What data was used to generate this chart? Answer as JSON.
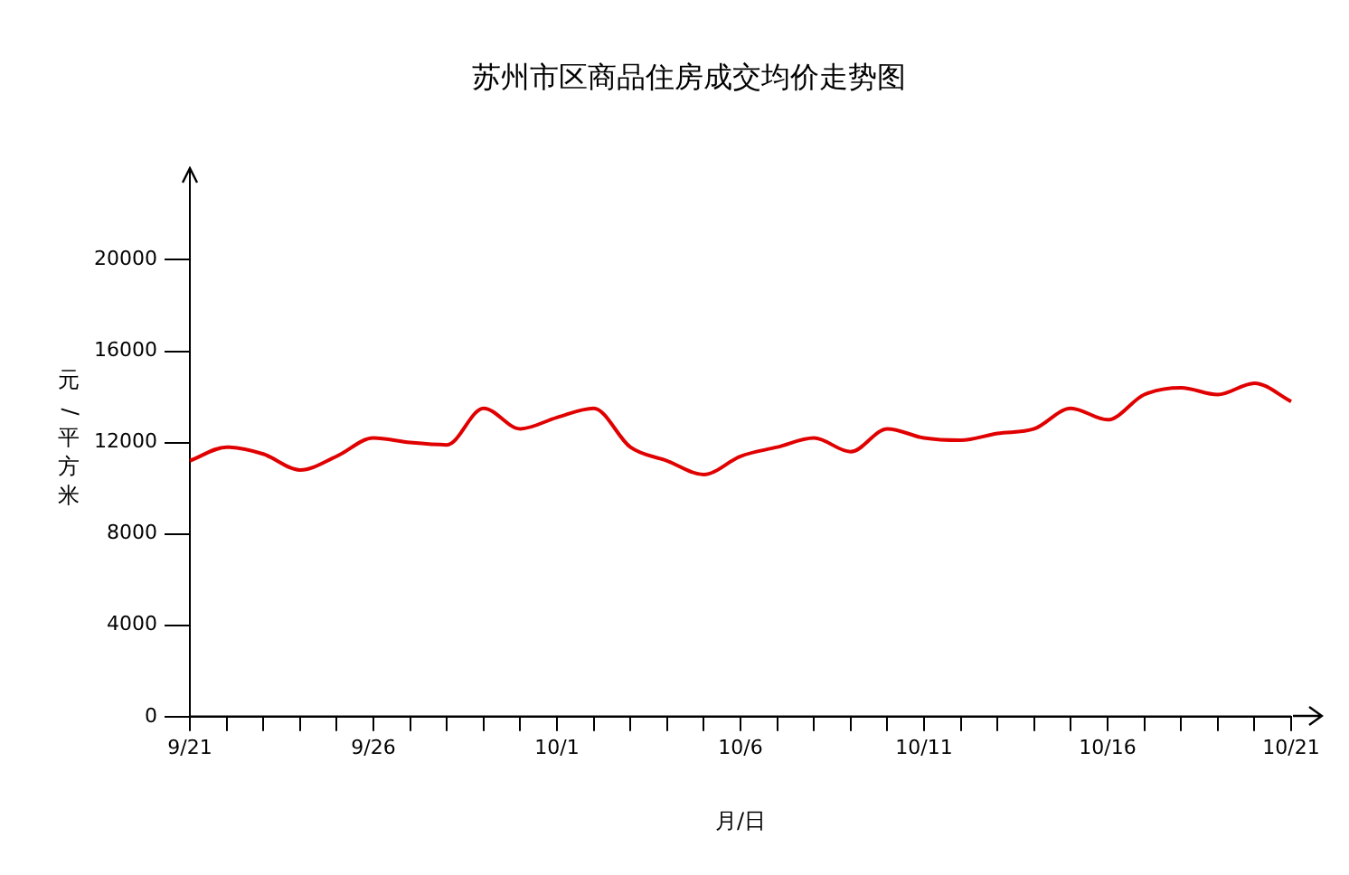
{
  "chart_data": {
    "type": "line",
    "title": "苏州市区商品住房成交均价走势图",
    "xlabel": "月/日",
    "ylabel": "元/平方米",
    "categories": [
      "9/21",
      null,
      null,
      null,
      null,
      "9/26",
      null,
      null,
      null,
      null,
      "10/1",
      null,
      null,
      null,
      null,
      "10/6",
      null,
      null,
      null,
      null,
      "10/11",
      null,
      null,
      null,
      null,
      "10/16",
      null,
      null,
      null,
      null,
      "10/21"
    ],
    "series": [
      {
        "color": "#e00000",
        "values": [
          11200,
          11800,
          11500,
          10800,
          11400,
          12200,
          12000,
          11900,
          13500,
          12600,
          13100,
          13500,
          11800,
          11200,
          10600,
          11400,
          11800,
          12200,
          11600,
          12600,
          12200,
          12100,
          12400,
          12600,
          13500,
          13000,
          14100,
          14400,
          14100,
          14600,
          13800
        ]
      }
    ],
    "ylim": [
      0,
      24000
    ],
    "yticks": [
      0,
      4000,
      8000,
      12000,
      16000,
      20000
    ],
    "grid": false,
    "legend": false,
    "marker": "none",
    "line_style": "solid"
  }
}
